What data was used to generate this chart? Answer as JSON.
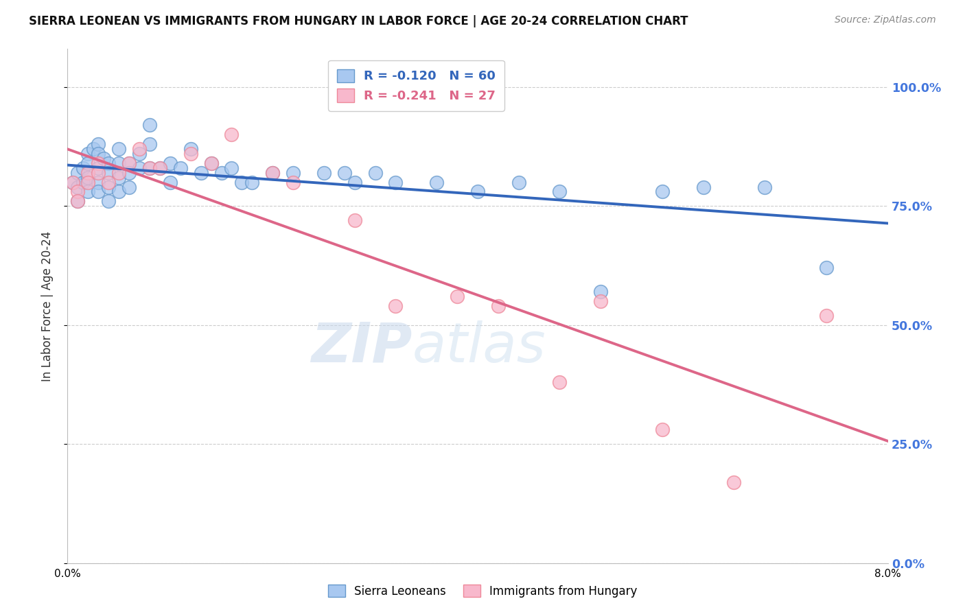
{
  "title": "SIERRA LEONEAN VS IMMIGRANTS FROM HUNGARY IN LABOR FORCE | AGE 20-24 CORRELATION CHART",
  "source": "Source: ZipAtlas.com",
  "ylabel": "In Labor Force | Age 20-24",
  "ytick_vals": [
    0.0,
    0.25,
    0.5,
    0.75,
    1.0
  ],
  "ytick_labels": [
    "0.0%",
    "25.0%",
    "50.0%",
    "75.0%",
    "100.0%"
  ],
  "xlim": [
    0.0,
    0.08
  ],
  "ylim": [
    0.0,
    1.08
  ],
  "blue_fill": "#A8C8F0",
  "pink_fill": "#F8B8CC",
  "blue_edge": "#6699CC",
  "pink_edge": "#EE8899",
  "blue_line_color": "#3366BB",
  "pink_line_color": "#DD6688",
  "legend_label_blue": "R = -0.120   N = 60",
  "legend_label_pink": "R = -0.241   N = 27",
  "bottom_label_blue": "Sierra Leoneans",
  "bottom_label_pink": "Immigrants from Hungary",
  "watermark": "ZIPatlas",
  "sl_x": [
    0.0005,
    0.001,
    0.001,
    0.001,
    0.0015,
    0.0015,
    0.002,
    0.002,
    0.002,
    0.002,
    0.0025,
    0.003,
    0.003,
    0.003,
    0.003,
    0.003,
    0.0035,
    0.004,
    0.004,
    0.004,
    0.004,
    0.005,
    0.005,
    0.005,
    0.005,
    0.006,
    0.006,
    0.006,
    0.007,
    0.007,
    0.008,
    0.008,
    0.008,
    0.009,
    0.01,
    0.01,
    0.011,
    0.012,
    0.013,
    0.014,
    0.015,
    0.016,
    0.017,
    0.018,
    0.02,
    0.022,
    0.025,
    0.027,
    0.028,
    0.03,
    0.032,
    0.036,
    0.04,
    0.044,
    0.048,
    0.052,
    0.058,
    0.062,
    0.068,
    0.074
  ],
  "sl_y": [
    0.8,
    0.82,
    0.79,
    0.76,
    0.83,
    0.8,
    0.86,
    0.84,
    0.81,
    0.78,
    0.87,
    0.88,
    0.86,
    0.83,
    0.8,
    0.78,
    0.85,
    0.84,
    0.82,
    0.79,
    0.76,
    0.87,
    0.84,
    0.81,
    0.78,
    0.84,
    0.82,
    0.79,
    0.86,
    0.83,
    0.92,
    0.88,
    0.83,
    0.83,
    0.84,
    0.8,
    0.83,
    0.87,
    0.82,
    0.84,
    0.82,
    0.83,
    0.8,
    0.8,
    0.82,
    0.82,
    0.82,
    0.82,
    0.8,
    0.82,
    0.8,
    0.8,
    0.78,
    0.8,
    0.78,
    0.57,
    0.78,
    0.79,
    0.79,
    0.62
  ],
  "hu_x": [
    0.0005,
    0.001,
    0.001,
    0.002,
    0.002,
    0.003,
    0.003,
    0.004,
    0.005,
    0.006,
    0.007,
    0.008,
    0.009,
    0.012,
    0.014,
    0.016,
    0.02,
    0.022,
    0.028,
    0.032,
    0.038,
    0.042,
    0.048,
    0.052,
    0.058,
    0.065,
    0.074
  ],
  "hu_y": [
    0.8,
    0.78,
    0.76,
    0.82,
    0.8,
    0.84,
    0.82,
    0.8,
    0.82,
    0.84,
    0.87,
    0.83,
    0.83,
    0.86,
    0.84,
    0.9,
    0.82,
    0.8,
    0.72,
    0.54,
    0.56,
    0.54,
    0.38,
    0.55,
    0.28,
    0.17,
    0.52
  ]
}
